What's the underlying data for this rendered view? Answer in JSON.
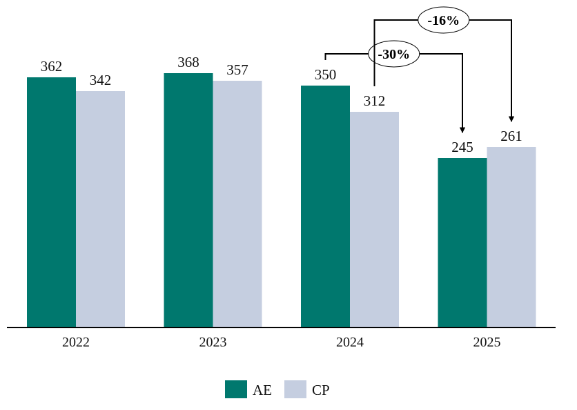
{
  "chart_data": {
    "type": "bar",
    "title": "",
    "xlabel": "",
    "ylabel": "",
    "categories": [
      "2022",
      "2023",
      "2024",
      "2025"
    ],
    "series": [
      {
        "name": "AE",
        "values": [
          362,
          368,
          350,
          245
        ],
        "color": "#00786E"
      },
      {
        "name": "CP",
        "values": [
          342,
          357,
          312,
          261
        ],
        "color": "#C5CEE0"
      }
    ],
    "ylim": [
      0,
      474
    ],
    "grid": false,
    "data_labels": true,
    "legend_position": "bottom",
    "annotations": [
      {
        "label": "-30%",
        "from": {
          "category": "2024",
          "series": "AE"
        },
        "to": {
          "category": "2025",
          "series": "AE"
        }
      },
      {
        "label": "-16%",
        "from": {
          "category": "2024",
          "series": "CP"
        },
        "to": {
          "category": "2025",
          "series": "CP"
        }
      }
    ]
  }
}
